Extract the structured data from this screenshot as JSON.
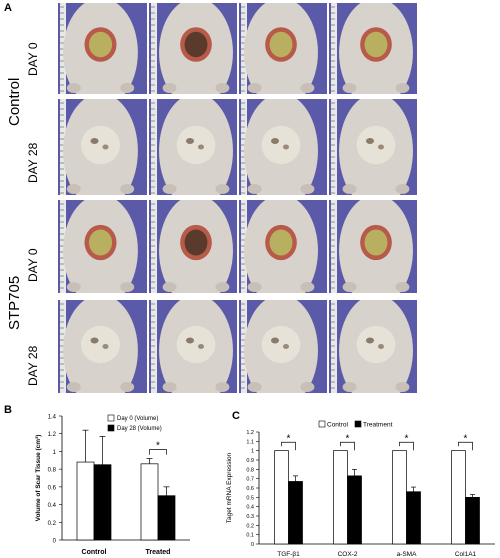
{
  "figure": {
    "panel_a_letter": "A",
    "panel_b_letter": "B",
    "panel_c_letter": "C",
    "group_labels": [
      "Control",
      "STP705"
    ],
    "day_labels": [
      "DAY 0",
      "DAY 28",
      "DAY 0",
      "DAY 28"
    ],
    "photo_rows": [
      {
        "group": "Control",
        "day": "DAY 0",
        "photo_count": 4
      },
      {
        "group": "Control",
        "day": "DAY 28",
        "photo_count": 4
      },
      {
        "group": "STP705",
        "day": "DAY 0",
        "photo_count": 4
      },
      {
        "group": "STP705",
        "day": "DAY 28",
        "photo_count": 4
      }
    ],
    "colors": {
      "background_blue": "#5a5aa8",
      "skin": "#d8d2cc",
      "scar": "#e6e2d8",
      "wound_red": "#b85a4a",
      "wound_yellow": "#b8b060",
      "wound_dark": "#5a3a2a"
    }
  },
  "chart_data": [
    {
      "type": "bar",
      "panel": "B",
      "categories": [
        "Control",
        "Treated"
      ],
      "series": [
        {
          "name": "Day 0 (Volume)",
          "values": [
            0.88,
            0.86
          ],
          "errors": [
            0.36,
            0.06
          ],
          "color": "#ffffff"
        },
        {
          "name": "Day 28 (Volume)",
          "values": [
            0.85,
            0.5
          ],
          "errors": [
            0.32,
            0.1
          ],
          "color": "#000000"
        }
      ],
      "ylabel": "Volume of Scar Tissue (cm³)",
      "ylim": [
        0,
        1.4
      ],
      "yticks": [
        "0",
        "0.2",
        "0.4",
        "0.6",
        "0.8",
        "1",
        "1.2",
        "1.4"
      ],
      "annotations": [
        "*"
      ],
      "legend_position": "top-right"
    },
    {
      "type": "bar",
      "panel": "C",
      "categories": [
        "TGF-β1",
        "COX-2",
        "a-SMA",
        "Col1A1"
      ],
      "series": [
        {
          "name": "Control",
          "values": [
            1.0,
            1.0,
            1.0,
            1.0
          ],
          "errors": [
            0,
            0,
            0,
            0
          ],
          "color": "#ffffff"
        },
        {
          "name": "Treatment",
          "values": [
            0.67,
            0.73,
            0.56,
            0.5
          ],
          "errors": [
            0.06,
            0.07,
            0.05,
            0.03
          ],
          "color": "#000000"
        }
      ],
      "ylabel": "Taget mRNA Expression",
      "ylim": [
        0,
        1.2
      ],
      "yticks": [
        "0",
        "0.1",
        "0.2",
        "0.3",
        "0.4",
        "0.5",
        "0.6",
        "0.7",
        "0.8",
        "0.9",
        "1",
        "1.1",
        "1.2"
      ],
      "annotations": [
        "*",
        "*",
        "*",
        "*"
      ],
      "legend_position": "top"
    }
  ]
}
